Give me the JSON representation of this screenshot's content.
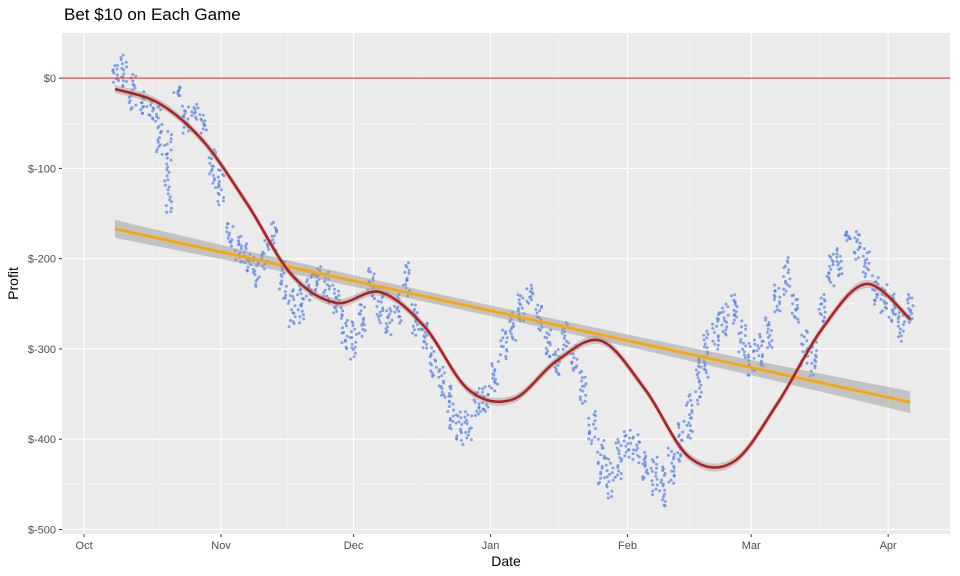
{
  "chart_data": {
    "type": "scatter",
    "title": "Bet $10 on Each Game",
    "xlabel": "Date",
    "ylabel": "Profit",
    "x_tick_labels": [
      "Oct",
      "Nov",
      "Dec",
      "Jan",
      "Feb",
      "Mar",
      "Apr"
    ],
    "x_tick_dates": [
      "2018-10-01",
      "2018-11-01",
      "2018-12-01",
      "2019-01-01",
      "2019-02-01",
      "2019-03-01",
      "2019-04-01"
    ],
    "xlim": [
      "2018-09-26",
      "2019-04-15"
    ],
    "y_ticks": [
      0,
      -100,
      -200,
      -300,
      -400,
      -500
    ],
    "y_tick_labels": [
      "$0",
      "$-100",
      "$-200",
      "$-300",
      "$-400",
      "$-500"
    ],
    "ylim": [
      -505,
      50
    ],
    "reference_line": {
      "y": 0,
      "color": "#f8423b"
    },
    "points_color": "#4a78e3",
    "daily_profit_range": {
      "dates": [
        "2018-10-08",
        "2018-10-10",
        "2018-10-12",
        "2018-10-14",
        "2018-10-16",
        "2018-10-18",
        "2018-10-20",
        "2018-10-22",
        "2018-10-24",
        "2018-10-26",
        "2018-10-28",
        "2018-10-30",
        "2018-11-01",
        "2018-11-03",
        "2018-11-05",
        "2018-11-07",
        "2018-11-09",
        "2018-11-11",
        "2018-11-13",
        "2018-11-15",
        "2018-11-17",
        "2018-11-19",
        "2018-11-21",
        "2018-11-23",
        "2018-11-25",
        "2018-11-27",
        "2018-11-29",
        "2018-12-01",
        "2018-12-03",
        "2018-12-05",
        "2018-12-07",
        "2018-12-09",
        "2018-12-11",
        "2018-12-13",
        "2018-12-15",
        "2018-12-17",
        "2018-12-19",
        "2018-12-21",
        "2018-12-23",
        "2018-12-25",
        "2018-12-27",
        "2018-12-29",
        "2018-12-31",
        "2019-01-02",
        "2019-01-04",
        "2019-01-06",
        "2019-01-08",
        "2019-01-10",
        "2019-01-12",
        "2019-01-14",
        "2019-01-16",
        "2019-01-18",
        "2019-01-20",
        "2019-01-22",
        "2019-01-24",
        "2019-01-26",
        "2019-01-28",
        "2019-01-30",
        "2019-02-01",
        "2019-02-03",
        "2019-02-05",
        "2019-02-07",
        "2019-02-09",
        "2019-02-11",
        "2019-02-13",
        "2019-02-15",
        "2019-02-17",
        "2019-02-19",
        "2019-02-21",
        "2019-02-23",
        "2019-02-25",
        "2019-02-27",
        "2019-03-01",
        "2019-03-03",
        "2019-03-05",
        "2019-03-07",
        "2019-03-09",
        "2019-03-11",
        "2019-03-13",
        "2019-03-15",
        "2019-03-17",
        "2019-03-19",
        "2019-03-21",
        "2019-03-23",
        "2019-03-25",
        "2019-03-27",
        "2019-03-29",
        "2019-03-31",
        "2019-04-02",
        "2019-04-04",
        "2019-04-06"
      ],
      "min": [
        -5,
        -10,
        -35,
        -40,
        -45,
        -85,
        -150,
        -20,
        -60,
        -45,
        -60,
        -120,
        -140,
        -185,
        -205,
        -215,
        -230,
        -210,
        -190,
        -245,
        -275,
        -270,
        -245,
        -235,
        -250,
        -260,
        -300,
        -310,
        -285,
        -245,
        -270,
        -285,
        -270,
        -240,
        -285,
        -300,
        -330,
        -355,
        -390,
        -405,
        -400,
        -375,
        -370,
        -345,
        -310,
        -290,
        -270,
        -250,
        -280,
        -310,
        -330,
        -300,
        -325,
        -360,
        -405,
        -450,
        -465,
        -445,
        -420,
        -425,
        -445,
        -460,
        -475,
        -450,
        -425,
        -400,
        -360,
        -330,
        -300,
        -285,
        -270,
        -310,
        -330,
        -320,
        -300,
        -260,
        -240,
        -270,
        -320,
        -330,
        -270,
        -230,
        -220,
        -180,
        -200,
        -220,
        -250,
        -260,
        -270,
        -290,
        -270
      ],
      "max": [
        15,
        25,
        5,
        -15,
        -25,
        -30,
        -60,
        -10,
        -30,
        -30,
        -40,
        -80,
        -100,
        -160,
        -175,
        -185,
        -200,
        -180,
        -160,
        -205,
        -235,
        -230,
        -215,
        -210,
        -215,
        -230,
        -255,
        -270,
        -250,
        -210,
        -240,
        -255,
        -240,
        -205,
        -250,
        -270,
        -300,
        -320,
        -340,
        -370,
        -370,
        -345,
        -340,
        -315,
        -280,
        -260,
        -240,
        -230,
        -250,
        -280,
        -300,
        -270,
        -295,
        -325,
        -370,
        -400,
        -420,
        -400,
        -390,
        -395,
        -415,
        -420,
        -430,
        -410,
        -380,
        -350,
        -310,
        -280,
        -260,
        -250,
        -240,
        -270,
        -290,
        -285,
        -265,
        -230,
        -200,
        -240,
        -280,
        -290,
        -240,
        -195,
        -190,
        -170,
        -170,
        -190,
        -220,
        -230,
        -240,
        -260,
        -240
      ]
    },
    "series": [
      {
        "type": "loess",
        "color": "#b22222",
        "x": [
          "2018-10-08",
          "2018-10-18",
          "2018-10-28",
          "2018-11-07",
          "2018-11-17",
          "2018-11-27",
          "2018-12-07",
          "2018-12-17",
          "2018-12-27",
          "2019-01-06",
          "2019-01-16",
          "2019-01-26",
          "2019-02-05",
          "2019-02-15",
          "2019-02-25",
          "2019-03-07",
          "2019-03-17",
          "2019-03-27",
          "2019-04-06"
        ],
        "y": [
          -12,
          -28,
          -70,
          -140,
          -218,
          -249,
          -237,
          -275,
          -345,
          -356,
          -313,
          -291,
          -345,
          -420,
          -425,
          -360,
          -278,
          -228,
          -267
        ]
      },
      {
        "type": "linear",
        "color": "#ffa500",
        "x": [
          "2018-10-08",
          "2019-04-06"
        ],
        "y": [
          -167,
          -359
        ]
      }
    ],
    "grid": true,
    "legend": "none"
  }
}
